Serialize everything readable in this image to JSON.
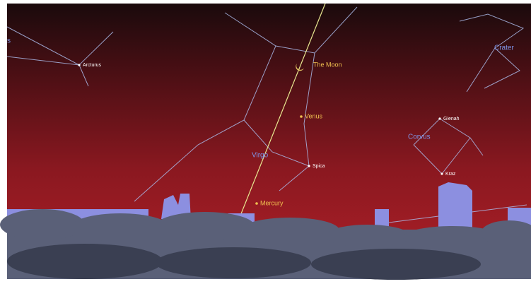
{
  "labels": {
    "stars": [
      "Arcturus",
      "Spica",
      "Gienah",
      "Kraz"
    ],
    "planets": [
      "The Moon",
      "Venus",
      "Mercury"
    ],
    "constellations": [
      "Virgo",
      "Corvus",
      "Crater"
    ],
    "edge_fragment": "s"
  }
}
